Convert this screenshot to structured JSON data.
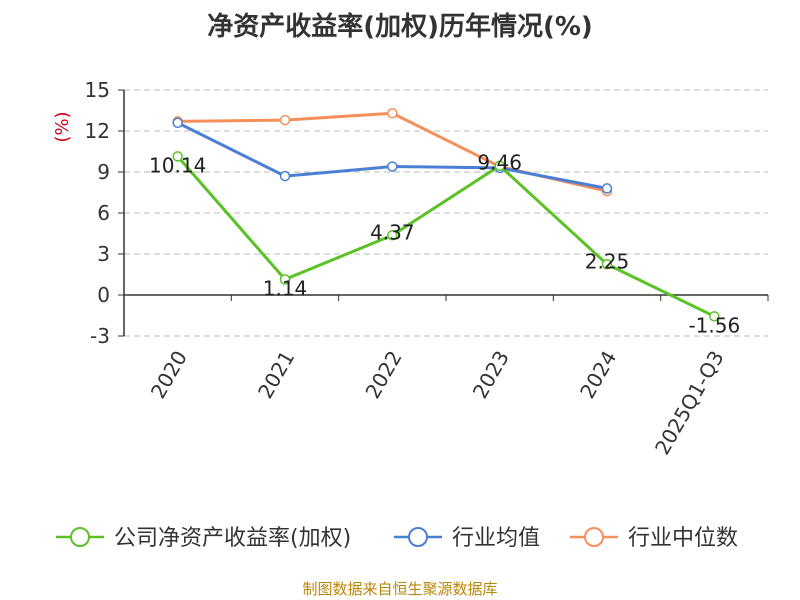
{
  "chart_data": {
    "type": "line",
    "title": "净资产收益率(加权)历年情况(%)",
    "ylabel": "(%)",
    "categories": [
      "2020",
      "2021",
      "2022",
      "2023",
      "2024",
      "2025Q1-Q3"
    ],
    "y_ticks": [
      "15",
      "12",
      "9",
      "6",
      "3",
      "0",
      "-3"
    ],
    "ylim": [
      -3,
      15
    ],
    "grid": true,
    "legend_position": "bottom",
    "series": [
      {
        "name": "公司净资产收益率(加权)",
        "color": "#5bc226",
        "values": [
          10.14,
          1.14,
          4.37,
          9.46,
          2.25,
          -1.56
        ],
        "labels": [
          "10.14",
          "1.14",
          "4.37",
          "9.46",
          "2.25",
          "-1.56"
        ]
      },
      {
        "name": "行业均值",
        "color": "#4a7fd6",
        "values": [
          12.6,
          8.7,
          9.4,
          9.3,
          7.8,
          null
        ]
      },
      {
        "name": "行业中位数",
        "color": "#f78f5a",
        "values": [
          12.7,
          12.8,
          13.3,
          9.4,
          7.6,
          null
        ]
      }
    ]
  },
  "source_note": "制图数据来自恒生聚源数据库"
}
